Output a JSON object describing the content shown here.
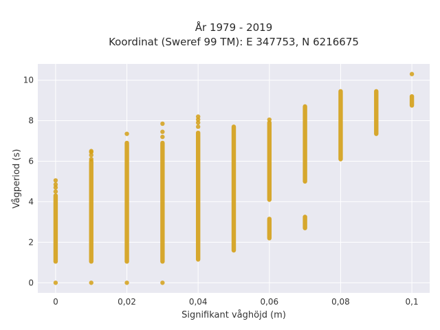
{
  "chart_data": {
    "type": "scatter",
    "title_lines": [
      "År 1979 - 2019",
      "Koordinat (Sweref 99 TM): E 347753, N 6216675"
    ],
    "xlabel": "Signifikant våghöjd (m)",
    "ylabel": "Vågperiod (s)",
    "xlim": [
      -0.005,
      0.105
    ],
    "ylim": [
      -0.5,
      10.8
    ],
    "x_ticks": [
      0,
      0.02,
      0.04,
      0.06,
      0.08,
      0.1
    ],
    "x_tick_labels": [
      "0",
      "0,02",
      "0,04",
      "0,06",
      "0,08",
      "0,1"
    ],
    "y_ticks": [
      0,
      2,
      4,
      6,
      8,
      10
    ],
    "y_tick_labels": [
      "0",
      "2",
      "4",
      "6",
      "8",
      "10"
    ],
    "grid": true,
    "marker_color": "#D4A017",
    "plot_background": "#E9E9F1",
    "columns": [
      {
        "x": 0.0,
        "ranges": [
          [
            1.05,
            4.3
          ]
        ],
        "points": [
          0.0,
          4.5,
          4.7,
          4.85,
          5.05
        ]
      },
      {
        "x": 0.01,
        "ranges": [
          [
            1.05,
            6.0
          ]
        ],
        "points": [
          0.0,
          6.1,
          6.3,
          6.45,
          6.5
        ]
      },
      {
        "x": 0.02,
        "ranges": [
          [
            1.05,
            6.9
          ]
        ],
        "points": [
          0.0,
          7.35
        ]
      },
      {
        "x": 0.03,
        "ranges": [
          [
            1.05,
            6.9
          ]
        ],
        "points": [
          0.0,
          7.2,
          7.45,
          7.85
        ]
      },
      {
        "x": 0.04,
        "ranges": [
          [
            1.15,
            7.4
          ]
        ],
        "points": [
          7.7,
          7.9,
          8.05,
          8.2
        ]
      },
      {
        "x": 0.05,
        "ranges": [
          [
            1.6,
            7.7
          ]
        ],
        "points": []
      },
      {
        "x": 0.06,
        "ranges": [
          [
            2.2,
            3.15
          ],
          [
            4.1,
            7.9
          ]
        ],
        "points": [
          8.05
        ]
      },
      {
        "x": 0.07,
        "ranges": [
          [
            2.7,
            3.25
          ],
          [
            5.0,
            8.7
          ]
        ],
        "points": []
      },
      {
        "x": 0.08,
        "ranges": [
          [
            6.1,
            9.45
          ]
        ],
        "points": []
      },
      {
        "x": 0.09,
        "ranges": [
          [
            7.35,
            9.45
          ]
        ],
        "points": []
      },
      {
        "x": 0.1,
        "ranges": [
          [
            8.75,
            9.2
          ]
        ],
        "points": [
          10.3
        ]
      }
    ]
  }
}
